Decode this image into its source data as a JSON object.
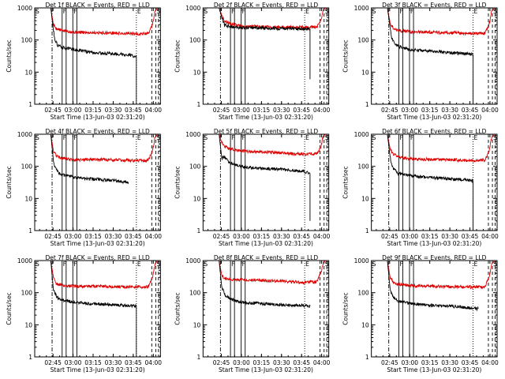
{
  "figure": {
    "xlabel": "Start Time (13-Jun-03 02:31:20)",
    "ylabel": "Counts/sec",
    "x_ticks": [
      "02:45",
      "03:00",
      "03:15",
      "03:30",
      "03:45",
      "04:00"
    ],
    "x_tick_minutes": [
      13.67,
      28.67,
      43.67,
      58.67,
      73.67,
      88.67
    ],
    "y_ticks": [
      "1",
      "10",
      "100",
      "1000"
    ],
    "colors": {
      "events": "#000000",
      "lld": "#dd0000",
      "axis": "#000000"
    },
    "markers": {
      "start": "S",
      "flare": "F",
      "end": "E"
    }
  },
  "chart_data": [
    {
      "type": "line",
      "title": "Det 1f BLACK = Events, RED = LLD",
      "xlim_minutes": [
        0,
        94
      ],
      "ylim": [
        1,
        1000
      ],
      "ylog": true,
      "series": [
        {
          "name": "LLD",
          "color": "#dd0000",
          "x": [
            0,
            12,
            14,
            16,
            20,
            30,
            45,
            60,
            75,
            85,
            88,
            90,
            92
          ],
          "y": [
            1000,
            1000,
            300,
            230,
            200,
            175,
            170,
            165,
            155,
            160,
            300,
            800,
            1000
          ]
        },
        {
          "name": "Events",
          "color": "#000000",
          "x": [
            0,
            12,
            14,
            15,
            17,
            20,
            25,
            30,
            45,
            60,
            70,
            76,
            76
          ],
          "y": [
            1000,
            1000,
            200,
            110,
            70,
            60,
            55,
            50,
            40,
            37,
            35,
            30,
            1
          ]
        }
      ]
    },
    {
      "type": "line",
      "title": "Det 2f BLACK = Events, RED = LLD",
      "xlim_minutes": [
        0,
        94
      ],
      "ylim": [
        1,
        1000
      ],
      "ylog": true,
      "series": [
        {
          "name": "LLD",
          "color": "#dd0000",
          "x": [
            0,
            12,
            14,
            16,
            20,
            30,
            45,
            60,
            75,
            85,
            88,
            90,
            92
          ],
          "y": [
            1000,
            1000,
            600,
            400,
            320,
            270,
            260,
            255,
            250,
            255,
            400,
            900,
            1000
          ]
        },
        {
          "name": "Events",
          "color": "#000000",
          "x": [
            0,
            12,
            14,
            16,
            20,
            30,
            45,
            60,
            75,
            80,
            80
          ],
          "y": [
            1000,
            1000,
            500,
            300,
            260,
            240,
            235,
            230,
            225,
            220,
            6
          ]
        }
      ]
    },
    {
      "type": "line",
      "title": "Det 3f BLACK = Events, RED = LLD",
      "xlim_minutes": [
        0,
        94
      ],
      "ylim": [
        1,
        1000
      ],
      "ylog": true,
      "series": [
        {
          "name": "LLD",
          "color": "#dd0000",
          "x": [
            0,
            12,
            14,
            16,
            20,
            30,
            45,
            60,
            75,
            85,
            88,
            90,
            92
          ],
          "y": [
            1000,
            1000,
            350,
            250,
            200,
            180,
            175,
            170,
            160,
            165,
            300,
            800,
            1000
          ]
        },
        {
          "name": "Events",
          "color": "#000000",
          "x": [
            0,
            12,
            14,
            15,
            17,
            20,
            25,
            30,
            45,
            60,
            70,
            76,
            76
          ],
          "y": [
            1000,
            1000,
            250,
            120,
            80,
            65,
            55,
            50,
            45,
            40,
            38,
            36,
            1
          ]
        }
      ]
    },
    {
      "type": "line",
      "title": "Det 4f BLACK = Events, RED = LLD",
      "xlim_minutes": [
        0,
        94
      ],
      "ylim": [
        1,
        1000
      ],
      "ylog": true,
      "series": [
        {
          "name": "LLD",
          "color": "#dd0000",
          "x": [
            0,
            12,
            14,
            16,
            20,
            30,
            45,
            60,
            75,
            85,
            88,
            90,
            92
          ],
          "y": [
            1000,
            1000,
            300,
            220,
            180,
            160,
            165,
            160,
            150,
            155,
            300,
            800,
            1000
          ]
        },
        {
          "name": "Events",
          "color": "#000000",
          "x": [
            0,
            12,
            14,
            15,
            17,
            20,
            25,
            30,
            45,
            60,
            70
          ],
          "y": [
            1000,
            1000,
            150,
            100,
            70,
            55,
            50,
            45,
            40,
            36,
            32
          ]
        }
      ]
    },
    {
      "type": "line",
      "title": "Det 5f BLACK = Events, RED = LLD",
      "xlim_minutes": [
        0,
        94
      ],
      "ylim": [
        1,
        1000
      ],
      "ylog": true,
      "series": [
        {
          "name": "LLD",
          "color": "#dd0000",
          "x": [
            0,
            12,
            14,
            16,
            20,
            30,
            45,
            60,
            75,
            85,
            88,
            90,
            92
          ],
          "y": [
            1000,
            1000,
            550,
            420,
            350,
            300,
            280,
            260,
            240,
            250,
            400,
            900,
            1000
          ]
        },
        {
          "name": "Events",
          "color": "#000000",
          "x": [
            0,
            12,
            14,
            16,
            18,
            20,
            25,
            30,
            45,
            60,
            75,
            80,
            80
          ],
          "y": [
            1000,
            1000,
            180,
            200,
            160,
            130,
            110,
            95,
            85,
            80,
            70,
            60,
            2
          ]
        }
      ]
    },
    {
      "type": "line",
      "title": "Det 6f BLACK = Events, RED = LLD",
      "xlim_minutes": [
        0,
        94
      ],
      "ylim": [
        1,
        1000
      ],
      "ylog": true,
      "series": [
        {
          "name": "LLD",
          "color": "#dd0000",
          "x": [
            0,
            12,
            14,
            16,
            20,
            30,
            45,
            60,
            75,
            85,
            88,
            90,
            92
          ],
          "y": [
            1000,
            1000,
            350,
            250,
            200,
            170,
            165,
            160,
            150,
            160,
            300,
            800,
            1000
          ]
        },
        {
          "name": "Events",
          "color": "#000000",
          "x": [
            0,
            12,
            14,
            15,
            17,
            20,
            25,
            30,
            45,
            60,
            70,
            76,
            76
          ],
          "y": [
            1000,
            1000,
            200,
            120,
            80,
            60,
            55,
            50,
            45,
            40,
            38,
            35,
            1
          ]
        }
      ]
    },
    {
      "type": "line",
      "title": "Det 7f BLACK = Events, RED = LLD",
      "xlim_minutes": [
        0,
        94
      ],
      "ylim": [
        1,
        1000
      ],
      "ylog": true,
      "series": [
        {
          "name": "LLD",
          "color": "#dd0000",
          "x": [
            0,
            12,
            14,
            16,
            20,
            30,
            45,
            60,
            75,
            85,
            88,
            90,
            92
          ],
          "y": [
            1000,
            1000,
            300,
            200,
            170,
            160,
            160,
            155,
            150,
            155,
            300,
            800,
            1000
          ]
        },
        {
          "name": "Events",
          "color": "#000000",
          "x": [
            0,
            12,
            14,
            15,
            17,
            20,
            25,
            30,
            45,
            60,
            70,
            76,
            76
          ],
          "y": [
            1000,
            1000,
            120,
            100,
            70,
            60,
            55,
            50,
            45,
            42,
            40,
            38,
            1
          ]
        }
      ]
    },
    {
      "type": "line",
      "title": "Det 8f BLACK = Events, RED = LLD",
      "xlim_minutes": [
        0,
        94
      ],
      "ylim": [
        1,
        1000
      ],
      "ylog": true,
      "series": [
        {
          "name": "LLD",
          "color": "#dd0000",
          "x": [
            0,
            12,
            14,
            16,
            20,
            30,
            45,
            60,
            75,
            85,
            88,
            90,
            92
          ],
          "y": [
            1000,
            1000,
            350,
            280,
            260,
            250,
            240,
            230,
            210,
            220,
            400,
            900,
            1000
          ]
        },
        {
          "name": "Events",
          "color": "#000000",
          "x": [
            0,
            12,
            14,
            15,
            17,
            20,
            25,
            30,
            45,
            60,
            75,
            80
          ],
          "y": [
            1000,
            1000,
            150,
            120,
            80,
            65,
            55,
            50,
            45,
            42,
            40,
            38
          ]
        }
      ]
    },
    {
      "type": "line",
      "title": "Det 9f BLACK = Events, RED = LLD",
      "xlim_minutes": [
        0,
        94
      ],
      "ylim": [
        1,
        1000
      ],
      "ylog": true,
      "series": [
        {
          "name": "LLD",
          "color": "#dd0000",
          "x": [
            0,
            12,
            14,
            16,
            20,
            30,
            45,
            60,
            75,
            85,
            88,
            90,
            92
          ],
          "y": [
            1000,
            1000,
            300,
            220,
            180,
            165,
            160,
            155,
            150,
            155,
            300,
            800,
            1000
          ]
        },
        {
          "name": "Events",
          "color": "#000000",
          "x": [
            0,
            12,
            14,
            15,
            17,
            20,
            25,
            30,
            45,
            60,
            70,
            80
          ],
          "y": [
            1000,
            1000,
            130,
            100,
            70,
            55,
            50,
            45,
            40,
            38,
            35,
            32
          ]
        }
      ]
    }
  ]
}
